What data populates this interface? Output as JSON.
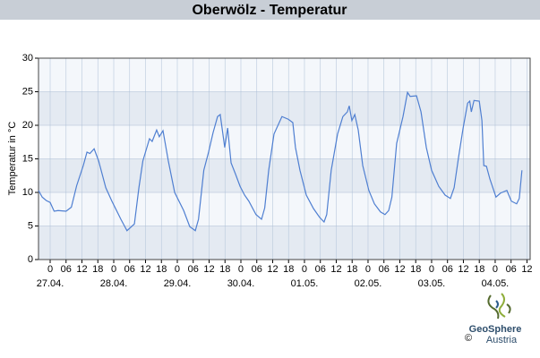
{
  "chart_data": {
    "type": "line",
    "title": "Oberwölz - Temperatur",
    "y_label": "Temperatur in °C",
    "x": [
      -4.4,
      -3,
      -1.5,
      0,
      1.5,
      3,
      6,
      8,
      10,
      11.5,
      12.5,
      13.9,
      15,
      16.6,
      18.3,
      21,
      23.3,
      26.7,
      29,
      31.8,
      33.5,
      35,
      37.5,
      38.5,
      40.2,
      41.2,
      42.6,
      44.6,
      47,
      50.4,
      52.7,
      54.8,
      56,
      58,
      59.8,
      61.5,
      63.2,
      64.2,
      65.9,
      67,
      68.3,
      70,
      71.7,
      73.4,
      75,
      77.7,
      79.8,
      81,
      82.5,
      84.5,
      87.5,
      89.9,
      91.6,
      92.6,
      94.3,
      96.7,
      99.4,
      101.7,
      103.4,
      104.4,
      106.1,
      108.5,
      110.5,
      112.2,
      112.9,
      113.9,
      115,
      116.3,
      118,
      120.3,
      122.4,
      124.7,
      126.4,
      127.8,
      129,
      130.8,
      133.2,
      134.9,
      135.9,
      138.3,
      140,
      142,
      144,
      146.7,
      149.1,
      151.1,
      152.5,
      154.2,
      155.9,
      157.6,
      158.4,
      159,
      160,
      162,
      163,
      163.7,
      164.7,
      166,
      168.3,
      170,
      172.4,
      174.1,
      176.1,
      177.1,
      178.1
    ],
    "series": [
      {
        "name": "Temperatur",
        "color": "#4f7fd1",
        "values": [
          10.3,
          9.3,
          8.8,
          8.5,
          7.2,
          7.3,
          7.2,
          7.8,
          11,
          12.8,
          14,
          16,
          15.8,
          16.5,
          14.7,
          10.7,
          8.7,
          6,
          4.3,
          5.3,
          10.7,
          14.7,
          18,
          17.6,
          19.3,
          18.3,
          19.2,
          14.7,
          10,
          7.3,
          4.9,
          4.3,
          6,
          13.3,
          16,
          18.9,
          21.3,
          21.6,
          16.7,
          19.6,
          14.4,
          12.7,
          10.9,
          9.6,
          8.7,
          6.7,
          6,
          7.7,
          13.3,
          18.7,
          21.3,
          20.9,
          20.4,
          16.7,
          13.3,
          9.6,
          7.6,
          6.3,
          5.6,
          6.7,
          13.3,
          18.7,
          21.3,
          22,
          22.9,
          20.7,
          21.6,
          19.3,
          14,
          10.3,
          8.3,
          7.1,
          6.7,
          7.3,
          9.3,
          17.3,
          21.3,
          24.9,
          24.3,
          24.4,
          22,
          16.7,
          13.3,
          10.9,
          9.6,
          9.1,
          10.7,
          15.3,
          19.6,
          23.3,
          23.6,
          22,
          23.7,
          23.6,
          20.7,
          14,
          13.9,
          12,
          9.3,
          9.9,
          10.3,
          8.7,
          8.3,
          9.1,
          13.3
        ]
      }
    ],
    "xlim": [
      -4.4,
      181.2
    ],
    "xticks": [
      0,
      {
        "value": 6,
        "label": "06"
      },
      12,
      18,
      {
        "value": 24,
        "label": "0"
      },
      {
        "value": 30,
        "label": "06"
      },
      {
        "value": 36,
        "label": "12"
      },
      {
        "value": 42,
        "label": "18"
      },
      {
        "value": 48,
        "label": "0"
      },
      {
        "value": 54,
        "label": "06"
      },
      {
        "value": 60,
        "label": "12"
      },
      {
        "value": 66,
        "label": "18"
      },
      {
        "value": 72,
        "label": "0"
      },
      {
        "value": 78,
        "label": "06"
      },
      {
        "value": 84,
        "label": "12"
      },
      {
        "value": 90,
        "label": "18"
      },
      {
        "value": 96,
        "label": "0"
      },
      {
        "value": 102,
        "label": "06"
      },
      {
        "value": 108,
        "label": "12"
      },
      {
        "value": 114,
        "label": "18"
      },
      {
        "value": 120,
        "label": "0"
      },
      {
        "value": 126,
        "label": "06"
      },
      {
        "value": 132,
        "label": "12"
      },
      {
        "value": 138,
        "label": "18"
      },
      {
        "value": 144,
        "label": "0"
      },
      {
        "value": 150,
        "label": "06"
      },
      {
        "value": 156,
        "label": "12"
      },
      {
        "value": 162,
        "label": "18"
      },
      {
        "value": 168,
        "label": "0"
      },
      {
        "value": 174,
        "label": "06"
      },
      {
        "value": 180,
        "label": "12"
      }
    ],
    "xdates": [
      {
        "value": 0,
        "label": "27.04."
      },
      {
        "value": 24,
        "label": "28.04."
      },
      {
        "value": 48,
        "label": "29.04."
      },
      {
        "value": 72,
        "label": "30.04."
      },
      {
        "value": 96,
        "label": "01.05."
      },
      {
        "value": 120,
        "label": "02.05."
      },
      {
        "value": 144,
        "label": "03.05."
      },
      {
        "value": 168,
        "label": "04.05."
      }
    ],
    "ylim": [
      0,
      30
    ],
    "yticks": [
      0,
      5,
      10,
      15,
      20,
      25,
      30
    ],
    "grid": true
  },
  "logo": {
    "name": "GeoSphere",
    "sub": "Austria",
    "copyright": "©"
  }
}
